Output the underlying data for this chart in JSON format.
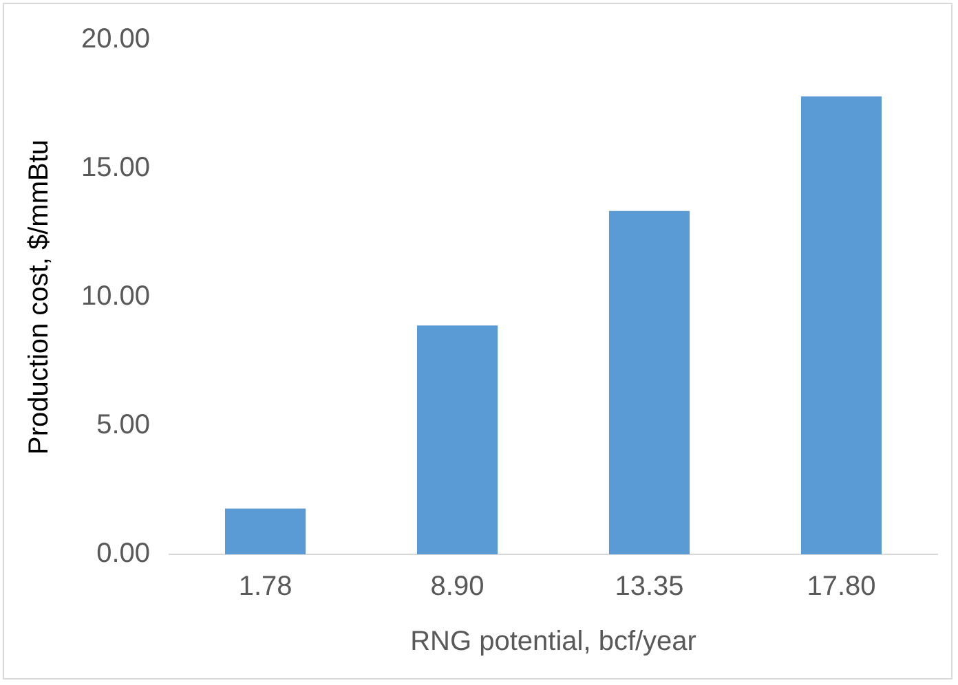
{
  "chart_data": {
    "type": "bar",
    "xlabel": "RNG potential, bcf/year",
    "ylabel": "Production cost, $/mmBtu",
    "categories": [
      "1.78",
      "8.90",
      "13.35",
      "17.80"
    ],
    "values": [
      1.78,
      8.9,
      13.35,
      17.8
    ],
    "color": "#5b9bd5",
    "ylim": [
      0,
      20
    ],
    "yticks": [
      {
        "value": 0,
        "label": "0.00"
      },
      {
        "value": 5,
        "label": "5.00"
      },
      {
        "value": 10,
        "label": "10.00"
      },
      {
        "value": 15,
        "label": "15.00"
      },
      {
        "value": 20,
        "label": "20.00"
      }
    ],
    "grid": false,
    "legend": false
  }
}
